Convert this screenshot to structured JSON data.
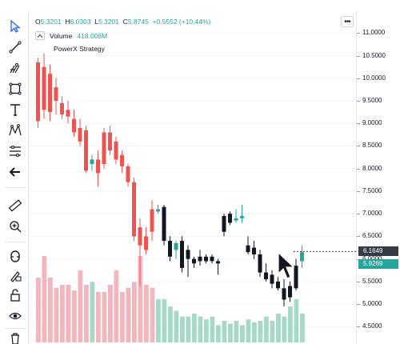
{
  "legend": {
    "o_label": "O",
    "o_value": "5.3201",
    "h_label": "H",
    "h_value": "6.0303",
    "l_label": "L",
    "l_value": "5.3201",
    "c_label": "C",
    "c_value": "5.8745",
    "change": "+0.5552 (+10.44%)"
  },
  "volume": {
    "toggle_icon": "chevron-up-icon",
    "label": "Volume",
    "value": "418.008M"
  },
  "strategy": {
    "name": "PowerX Strategy"
  },
  "more_button": {
    "label": "•••"
  },
  "toolbar": {
    "items": [
      {
        "icon": "cursor-arrow-icon"
      },
      {
        "icon": "trend-line-icon"
      },
      {
        "icon": "pitchfork-icon"
      },
      {
        "icon": "rectangle-shape-icon"
      },
      {
        "icon": "text-tool-icon"
      },
      {
        "icon": "pattern-tool-icon"
      },
      {
        "icon": "fibonacci-tool-icon"
      },
      {
        "icon": "back-arrow-icon"
      },
      {
        "icon": "ruler-icon"
      },
      {
        "icon": "zoom-in-icon"
      },
      {
        "icon": "magnet-icon"
      },
      {
        "icon": "lock-pencil-icon"
      },
      {
        "icon": "unlock-icon"
      },
      {
        "icon": "eye-icon"
      },
      {
        "icon": "trash-icon"
      }
    ]
  },
  "price_axis": {
    "ticks": [
      "11.0000",
      "10.5000",
      "10.0000",
      "9.5000",
      "9.0000",
      "8.5000",
      "8.0000",
      "7.5000",
      "7.0000",
      "6.5000",
      "6.0000",
      "5.5000",
      "5.0000",
      "4.5000"
    ],
    "current_tag": "6.1649",
    "last_tag": "5.9269"
  },
  "colors": {
    "up": "#26a69a",
    "down": "#ef5350",
    "down_recent": "#131722",
    "vol_up": "#a7d9c8",
    "vol_down": "#f2b6bc",
    "accent": "#2962ff"
  },
  "chart_data": {
    "type": "candlestick",
    "ylim": [
      4.4,
      11.2
    ],
    "candles": [
      {
        "o": 10.35,
        "h": 10.45,
        "l": 8.9,
        "c": 9.05,
        "color": "down"
      },
      {
        "o": 10.25,
        "h": 10.55,
        "l": 9.1,
        "c": 9.3,
        "color": "down"
      },
      {
        "o": 10.1,
        "h": 10.3,
        "l": 9.05,
        "c": 9.25,
        "color": "down"
      },
      {
        "o": 9.8,
        "h": 10.0,
        "l": 9.2,
        "c": 9.5,
        "color": "down"
      },
      {
        "o": 9.45,
        "h": 9.6,
        "l": 9.1,
        "c": 9.2,
        "color": "down"
      },
      {
        "o": 9.3,
        "h": 9.5,
        "l": 9.0,
        "c": 9.15,
        "color": "down"
      },
      {
        "o": 9.1,
        "h": 9.3,
        "l": 8.7,
        "c": 8.8,
        "color": "down"
      },
      {
        "o": 8.9,
        "h": 9.1,
        "l": 8.5,
        "c": 8.6,
        "color": "down"
      },
      {
        "o": 8.85,
        "h": 8.95,
        "l": 7.9,
        "c": 7.95,
        "color": "down"
      },
      {
        "o": 8.1,
        "h": 8.3,
        "l": 7.95,
        "c": 8.2,
        "color": "up"
      },
      {
        "o": 8.2,
        "h": 8.4,
        "l": 7.6,
        "c": 7.9,
        "color": "down"
      },
      {
        "o": 8.8,
        "h": 8.9,
        "l": 8.0,
        "c": 8.1,
        "color": "down"
      },
      {
        "o": 8.8,
        "h": 8.95,
        "l": 8.3,
        "c": 8.4,
        "color": "down"
      },
      {
        "o": 8.6,
        "h": 8.7,
        "l": 8.1,
        "c": 8.2,
        "color": "down"
      },
      {
        "o": 8.3,
        "h": 8.4,
        "l": 7.9,
        "c": 8.05,
        "color": "down"
      },
      {
        "o": 8.05,
        "h": 8.1,
        "l": 7.6,
        "c": 7.7,
        "color": "down"
      },
      {
        "o": 7.7,
        "h": 7.8,
        "l": 6.4,
        "c": 6.5,
        "color": "down"
      },
      {
        "o": 6.7,
        "h": 6.9,
        "l": 5.4,
        "c": 6.3,
        "color": "down"
      },
      {
        "o": 6.5,
        "h": 6.7,
        "l": 6.1,
        "c": 6.2,
        "color": "down"
      },
      {
        "o": 7.1,
        "h": 7.3,
        "l": 6.4,
        "c": 6.6,
        "color": "down"
      },
      {
        "o": 7.05,
        "h": 7.2,
        "l": 7.0,
        "c": 7.1,
        "color": "up"
      },
      {
        "o": 7.15,
        "h": 7.2,
        "l": 6.3,
        "c": 6.4,
        "color": "down_recent"
      },
      {
        "o": 6.4,
        "h": 6.5,
        "l": 5.95,
        "c": 6.05,
        "color": "down_recent"
      },
      {
        "o": 6.2,
        "h": 6.4,
        "l": 6.0,
        "c": 6.35,
        "color": "up"
      },
      {
        "o": 6.4,
        "h": 6.5,
        "l": 5.7,
        "c": 5.8,
        "color": "down_recent"
      },
      {
        "o": 6.0,
        "h": 6.3,
        "l": 5.6,
        "c": 6.2,
        "color": "down_recent"
      },
      {
        "o": 6.0,
        "h": 6.05,
        "l": 5.8,
        "c": 5.9,
        "color": "down_recent"
      },
      {
        "o": 6.05,
        "h": 6.2,
        "l": 5.85,
        "c": 5.95,
        "color": "down_recent"
      },
      {
        "o": 6.05,
        "h": 6.1,
        "l": 5.9,
        "c": 5.95,
        "color": "down_recent"
      },
      {
        "o": 6.05,
        "h": 6.1,
        "l": 5.9,
        "c": 5.95,
        "color": "down_recent"
      },
      {
        "o": 5.95,
        "h": 6.0,
        "l": 5.65,
        "c": 5.9,
        "color": "down_recent"
      },
      {
        "o": 6.95,
        "h": 7.0,
        "l": 6.5,
        "c": 6.6,
        "color": "down_recent"
      },
      {
        "o": 7.0,
        "h": 7.05,
        "l": 6.75,
        "c": 6.8,
        "color": "down_recent"
      },
      {
        "o": 6.85,
        "h": 7.1,
        "l": 6.8,
        "c": 6.9,
        "color": "up"
      },
      {
        "o": 6.9,
        "h": 7.2,
        "l": 6.8,
        "c": 6.95,
        "color": "up"
      },
      {
        "o": 6.3,
        "h": 6.5,
        "l": 6.1,
        "c": 6.15,
        "color": "down_recent"
      },
      {
        "o": 6.25,
        "h": 6.4,
        "l": 6.0,
        "c": 6.1,
        "color": "down_recent"
      },
      {
        "o": 6.1,
        "h": 6.2,
        "l": 5.6,
        "c": 5.7,
        "color": "down_recent"
      },
      {
        "o": 5.7,
        "h": 5.9,
        "l": 5.5,
        "c": 5.55,
        "color": "down_recent"
      },
      {
        "o": 5.65,
        "h": 5.75,
        "l": 5.35,
        "c": 5.45,
        "color": "down_recent"
      },
      {
        "o": 5.5,
        "h": 5.6,
        "l": 5.3,
        "c": 5.35,
        "color": "down_recent"
      },
      {
        "o": 5.35,
        "h": 5.55,
        "l": 4.95,
        "c": 5.1,
        "color": "down_recent"
      },
      {
        "o": 5.4,
        "h": 5.5,
        "l": 5.05,
        "c": 5.15,
        "color": "down_recent"
      },
      {
        "o": 5.35,
        "h": 6.0,
        "l": 5.3,
        "c": 5.85,
        "color": "down_recent"
      },
      {
        "o": 5.95,
        "h": 6.3,
        "l": 5.8,
        "c": 6.15,
        "color": "up"
      }
    ],
    "volumes": [
      0.45,
      0.6,
      0.45,
      0.38,
      0.4,
      0.4,
      0.36,
      0.5,
      0.4,
      0.42,
      0.35,
      0.35,
      0.4,
      0.5,
      0.35,
      0.38,
      0.42,
      0.6,
      0.4,
      0.38,
      0.3,
      0.3,
      0.25,
      0.22,
      0.18,
      0.18,
      0.2,
      0.18,
      0.16,
      0.18,
      0.12,
      0.15,
      0.13,
      0.15,
      0.12,
      0.16,
      0.14,
      0.15,
      0.18,
      0.15,
      0.2,
      0.18,
      0.25,
      0.3,
      0.2
    ]
  }
}
